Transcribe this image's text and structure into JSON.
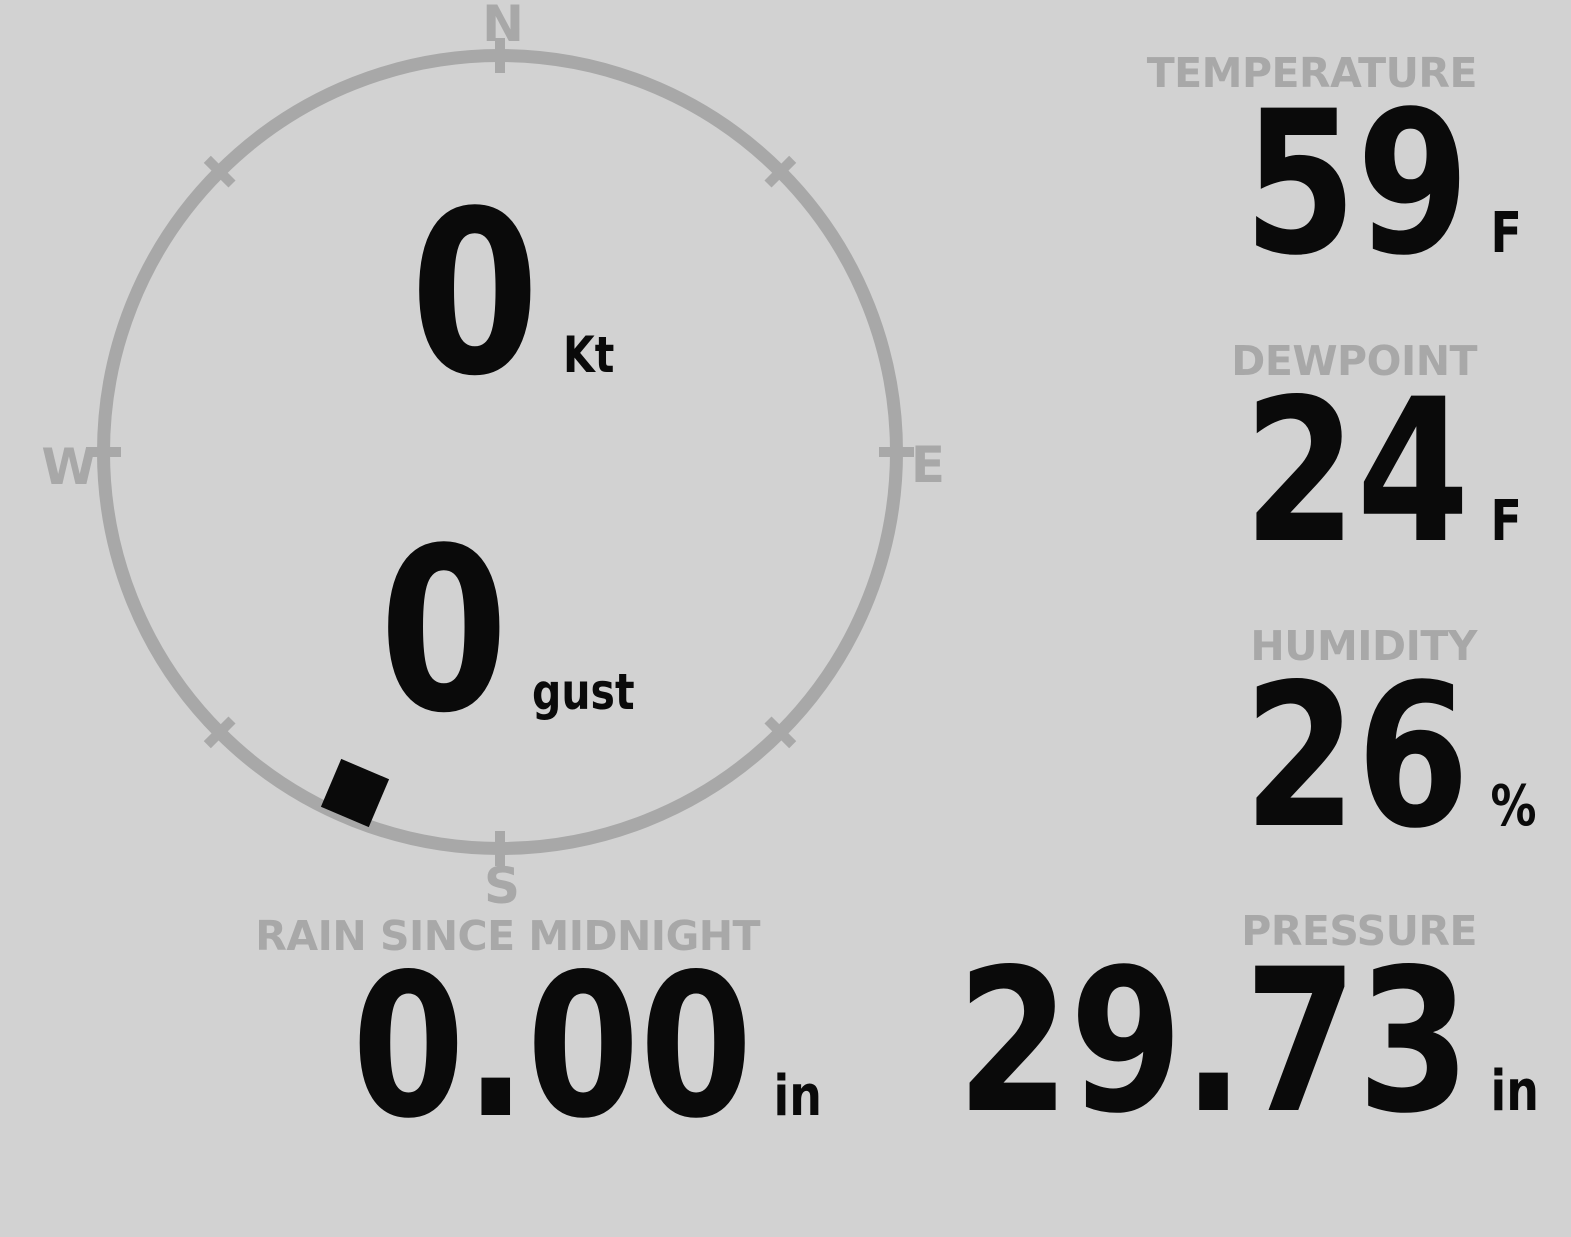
{
  "colors": {
    "background": "#d2d2d2",
    "muted": "#a8a8a8",
    "ink": "#0a0a0a"
  },
  "compass": {
    "cardinals": {
      "north": "N",
      "east": "E",
      "south": "S",
      "west": "W"
    },
    "wind_speed": {
      "value": "0",
      "unit": "Kt"
    },
    "wind_gust": {
      "value": "0",
      "unit": "gust"
    },
    "wind_direction_deg": 203
  },
  "metrics": {
    "temperature": {
      "label": "TEMPERATURE",
      "value": "59",
      "unit": "F"
    },
    "dewpoint": {
      "label": "DEWPOINT",
      "value": "24",
      "unit": "F"
    },
    "humidity": {
      "label": "HUMIDITY",
      "value": "26",
      "unit": "%"
    },
    "pressure": {
      "label": "PRESSURE",
      "value": "29.73",
      "unit": "in"
    },
    "rain_since_midnight": {
      "label": "RAIN SINCE MIDNIGHT",
      "value": "0.00",
      "unit": "in"
    }
  }
}
